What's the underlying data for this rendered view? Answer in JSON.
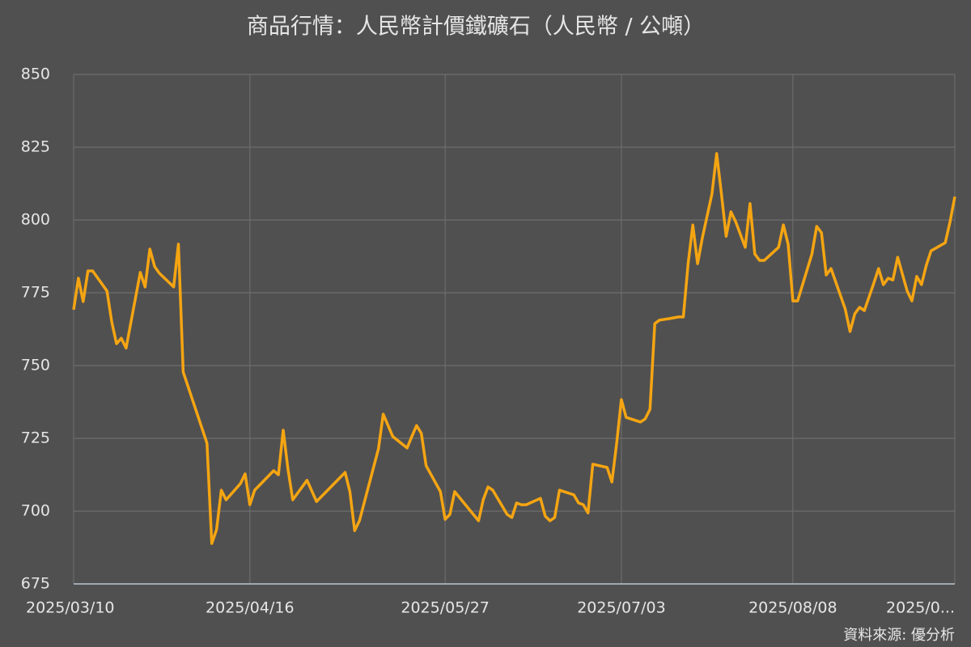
{
  "chart_data": {
    "type": "line",
    "title": "商品行情：人民幣計價鐵礦石（人民幣 / 公噸）",
    "source": "資料來源: 優分析",
    "x": [
      "2025/03/10",
      "2025/03/11",
      "2025/03/12",
      "2025/03/13",
      "2025/03/14",
      "2025/03/17",
      "2025/03/18",
      "2025/03/19",
      "2025/03/20",
      "2025/03/21",
      "2025/03/24",
      "2025/03/25",
      "2025/03/26",
      "2025/03/27",
      "2025/03/28",
      "2025/03/31",
      "2025/04/01",
      "2025/04/02",
      "2025/04/07",
      "2025/04/08",
      "2025/04/09",
      "2025/04/10",
      "2025/04/11",
      "2025/04/14",
      "2025/04/15",
      "2025/04/16",
      "2025/04/17",
      "2025/04/21",
      "2025/04/22",
      "2025/04/23",
      "2025/04/24",
      "2025/04/25",
      "2025/04/28",
      "2025/04/30",
      "2025/05/06",
      "2025/05/07",
      "2025/05/08",
      "2025/05/09",
      "2025/05/13",
      "2025/05/14",
      "2025/05/16",
      "2025/05/19",
      "2025/05/20",
      "2025/05/21",
      "2025/05/22",
      "2025/05/23",
      "2025/05/26",
      "2025/05/27",
      "2025/05/28",
      "2025/05/29",
      "2025/06/03",
      "2025/06/04",
      "2025/06/05",
      "2025/06/06",
      "2025/06/09",
      "2025/06/10",
      "2025/06/11",
      "2025/06/12",
      "2025/06/13",
      "2025/06/16",
      "2025/06/17",
      "2025/06/18",
      "2025/06/19",
      "2025/06/20",
      "2025/06/23",
      "2025/06/24",
      "2025/06/25",
      "2025/06/26",
      "2025/06/27",
      "2025/06/30",
      "2025/07/01",
      "2025/07/02",
      "2025/07/03",
      "2025/07/04",
      "2025/07/07",
      "2025/07/08",
      "2025/07/09",
      "2025/07/10",
      "2025/07/11",
      "2025/07/13",
      "2025/07/15",
      "2025/07/16",
      "2025/07/17",
      "2025/07/18",
      "2025/07/19",
      "2025/07/20",
      "2025/07/22",
      "2025/07/23",
      "2025/07/24",
      "2025/07/25",
      "2025/07/26",
      "2025/07/27",
      "2025/07/29",
      "2025/07/30",
      "2025/07/31",
      "2025/08/01",
      "2025/08/02",
      "2025/08/05",
      "2025/08/06",
      "2025/08/07",
      "2025/08/08",
      "2025/08/09",
      "2025/08/12",
      "2025/08/13",
      "2025/08/14",
      "2025/08/15",
      "2025/08/16",
      "2025/08/19",
      "2025/08/20",
      "2025/08/21",
      "2025/08/22",
      "2025/08/23",
      "2025/08/25",
      "2025/08/26",
      "2025/08/27",
      "2025/08/28",
      "2025/08/29",
      "2025/08/30",
      "2025/09/01",
      "2025/09/02",
      "2025/09/03",
      "2025/09/04",
      "2025/09/05",
      "2025/09/06",
      "2025/09/09",
      "2025/09/10",
      "2025/09/11"
    ],
    "series": [
      {
        "name": "鐵礦石",
        "color": "#f5a512",
        "values": [
          769.2,
          780,
          772,
          782.5,
          782.5,
          775.6,
          765,
          757.5,
          759.4,
          756,
          782,
          777,
          790,
          784,
          781.7,
          777,
          791.7,
          747.8,
          723.3,
          688.9,
          693.6,
          707.2,
          703.9,
          709.4,
          712.8,
          702.2,
          707.2,
          713.9,
          712.5,
          727.8,
          714.4,
          703.9,
          710.6,
          703.3,
          713.3,
          706.7,
          693.3,
          696.7,
          721.4,
          733.3,
          725.6,
          721.7,
          725.6,
          729.4,
          726.7,
          715.6,
          706.7,
          697.2,
          698.9,
          706.7,
          696.7,
          703.9,
          708.3,
          707.2,
          698.9,
          697.8,
          702.8,
          702.2,
          702.2,
          704.4,
          698.3,
          696.7,
          697.8,
          707.2,
          705.6,
          702.8,
          702.2,
          699.4,
          716.1,
          715,
          710,
          723.3,
          738.3,
          732.2,
          730.6,
          731.7,
          735,
          764.4,
          765.6,
          766.1,
          766.7,
          766.7,
          785,
          798.3,
          785,
          793.9,
          808.9,
          822.8,
          808.9,
          794.4,
          802.8,
          799.4,
          790.6,
          805.6,
          788.3,
          786.1,
          786.1,
          790.6,
          798.3,
          791.7,
          772.2,
          772.2,
          788.3,
          797.8,
          795.6,
          781.1,
          783.3,
          769.4,
          761.7,
          767.8,
          770,
          768.9,
          778.3,
          783.3,
          777.8,
          780,
          779.4,
          787.2,
          775.6,
          772.2,
          780.6,
          777.8,
          784.4,
          789.4,
          792.2,
          799.4,
          808
        ]
      }
    ],
    "xlim": [
      "2025/03/10",
      "2025/09/11"
    ],
    "xticks": [
      "2025/03/10",
      "2025/04/16",
      "2025/05/27",
      "2025/07/03",
      "2025/08/08",
      {
        "value": "2025/09/11",
        "label": "2025/0..."
      }
    ],
    "ylim": [
      675,
      850
    ],
    "yticks": [
      675,
      700,
      725,
      750,
      775,
      800,
      825,
      850
    ],
    "grid": true
  }
}
